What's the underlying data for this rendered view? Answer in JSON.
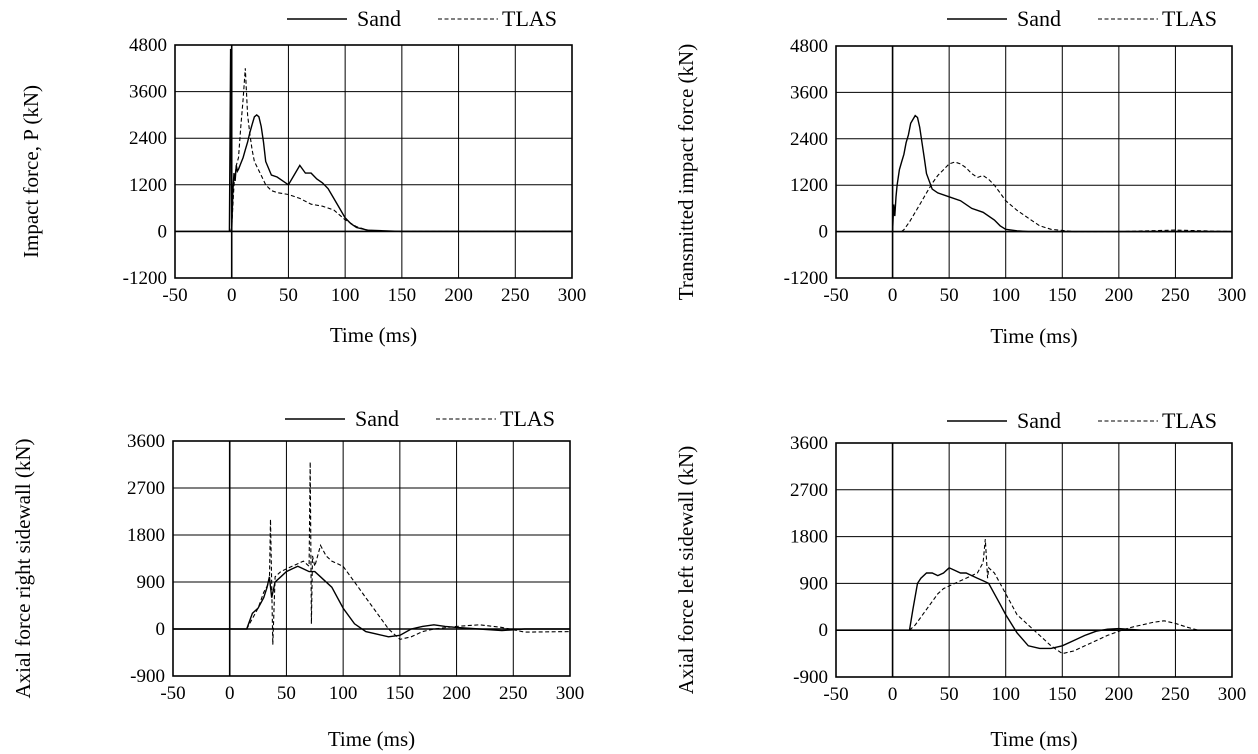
{
  "chart_data": [
    {
      "type": "line",
      "xlabel": "Time (ms)",
      "ylabel": "Impact force, P  (kN)",
      "xlim": [
        -50,
        300
      ],
      "ylim": [
        -1200,
        4800
      ],
      "xticks": [
        "-50",
        "0",
        "50",
        "100",
        "150",
        "200",
        "250",
        "300"
      ],
      "yticks": [
        "-1200",
        "0",
        "1200",
        "2400",
        "3600",
        "4800"
      ],
      "grid": true,
      "legend": "top-right",
      "series": [
        {
          "name": "Sand",
          "x": [
            -2,
            -1,
            0,
            1,
            2,
            3,
            4,
            5,
            6,
            8,
            10,
            12,
            14,
            16,
            18,
            20,
            22,
            24,
            26,
            28,
            30,
            35,
            40,
            45,
            50,
            55,
            60,
            65,
            70,
            75,
            80,
            85,
            90,
            95,
            100,
            105,
            110,
            120,
            150,
            300
          ],
          "y": [
            0,
            4700,
            0,
            1000,
            1500,
            1300,
            1700,
            1550,
            1600,
            1750,
            1900,
            2100,
            2300,
            2550,
            2750,
            2950,
            3000,
            2950,
            2700,
            2300,
            1800,
            1450,
            1400,
            1300,
            1200,
            1450,
            1700,
            1500,
            1500,
            1350,
            1250,
            1100,
            850,
            600,
            350,
            200,
            100,
            30,
            0,
            0
          ]
        },
        {
          "name": "TLAS",
          "x": [
            -1,
            0,
            2,
            4,
            6,
            8,
            10,
            12,
            14,
            16,
            18,
            20,
            25,
            30,
            35,
            40,
            50,
            60,
            70,
            80,
            90,
            100,
            110,
            120,
            130,
            300
          ],
          "y": [
            0,
            100,
            1200,
            1700,
            1900,
            2700,
            3400,
            4200,
            3000,
            2500,
            2100,
            1800,
            1500,
            1200,
            1050,
            1000,
            950,
            850,
            700,
            650,
            550,
            300,
            120,
            30,
            0,
            0
          ]
        }
      ]
    },
    {
      "type": "line",
      "xlabel": "Time (ms)",
      "ylabel": "Transmitted impact force (kN)",
      "xlim": [
        -50,
        300
      ],
      "ylim": [
        -1200,
        4800
      ],
      "xticks": [
        "-50",
        "0",
        "50",
        "100",
        "150",
        "200",
        "250",
        "300"
      ],
      "yticks": [
        "-1200",
        "0",
        "1200",
        "2400",
        "3600",
        "4800"
      ],
      "grid": true,
      "legend": "top-right",
      "series": [
        {
          "name": "Sand",
          "x": [
            0,
            1,
            2,
            3,
            4,
            6,
            8,
            10,
            12,
            14,
            16,
            18,
            20,
            22,
            24,
            26,
            28,
            30,
            35,
            40,
            50,
            60,
            70,
            80,
            90,
            95,
            100,
            110,
            120,
            150,
            300
          ],
          "y": [
            0,
            700,
            400,
            900,
            1200,
            1600,
            1800,
            2000,
            2300,
            2500,
            2800,
            2900,
            3000,
            2950,
            2700,
            2300,
            1900,
            1500,
            1100,
            1000,
            900,
            800,
            600,
            500,
            300,
            150,
            60,
            20,
            0,
            0,
            0
          ]
        },
        {
          "name": "TLAS",
          "x": [
            8,
            10,
            15,
            20,
            25,
            30,
            35,
            40,
            45,
            50,
            55,
            60,
            65,
            70,
            75,
            80,
            85,
            90,
            95,
            100,
            110,
            120,
            130,
            140,
            150,
            160,
            200,
            250,
            300
          ],
          "y": [
            0,
            50,
            250,
            500,
            750,
            1000,
            1250,
            1450,
            1600,
            1750,
            1800,
            1750,
            1650,
            1500,
            1400,
            1450,
            1350,
            1200,
            1000,
            800,
            550,
            350,
            150,
            60,
            30,
            0,
            0,
            40,
            0
          ]
        }
      ]
    },
    {
      "type": "line",
      "xlabel": "Time (ms)",
      "ylabel": "Axial force right sidewall (kN)",
      "xlim": [
        -50,
        300
      ],
      "ylim": [
        -900,
        3600
      ],
      "xticks": [
        "-50",
        "0",
        "50",
        "100",
        "150",
        "200",
        "250",
        "300"
      ],
      "yticks": [
        "-900",
        "0",
        "900",
        "1800",
        "2700",
        "3600"
      ],
      "grid": true,
      "legend": "top-right",
      "series": [
        {
          "name": "Sand",
          "x": [
            -50,
            15,
            20,
            25,
            30,
            33,
            35,
            37,
            40,
            45,
            50,
            55,
            60,
            65,
            70,
            75,
            80,
            90,
            100,
            110,
            120,
            130,
            140,
            150,
            160,
            170,
            180,
            190,
            200,
            220,
            240,
            260,
            300
          ],
          "y": [
            0,
            0,
            300,
            400,
            600,
            800,
            1000,
            600,
            900,
            1000,
            1100,
            1150,
            1200,
            1150,
            1100,
            1100,
            1000,
            800,
            400,
            100,
            -50,
            -100,
            -150,
            -120,
            0,
            50,
            80,
            50,
            30,
            0,
            -30,
            0,
            0
          ]
        },
        {
          "name": "TLAS",
          "x": [
            15,
            20,
            25,
            30,
            35,
            36,
            38,
            40,
            45,
            50,
            55,
            60,
            65,
            70,
            71,
            72,
            73,
            75,
            80,
            85,
            90,
            100,
            110,
            120,
            130,
            140,
            150,
            160,
            170,
            180,
            200,
            220,
            240,
            260,
            300
          ],
          "y": [
            0,
            200,
            400,
            700,
            900,
            2100,
            -300,
            1000,
            1100,
            1150,
            1200,
            1250,
            1300,
            1200,
            3200,
            100,
            1400,
            1200,
            1600,
            1400,
            1300,
            1200,
            900,
            600,
            300,
            0,
            -200,
            -150,
            -50,
            0,
            50,
            80,
            30,
            -60,
            -50
          ]
        }
      ]
    },
    {
      "type": "line",
      "xlabel": "Time (ms)",
      "ylabel": "Axial force left sidewall (kN)",
      "xlim": [
        -50,
        300
      ],
      "ylim": [
        -900,
        3600
      ],
      "xticks": [
        "-50",
        "0",
        "50",
        "100",
        "150",
        "200",
        "250",
        "300"
      ],
      "yticks": [
        "-900",
        "0",
        "900",
        "1800",
        "2700",
        "3600"
      ],
      "grid": true,
      "legend": "top-right",
      "series": [
        {
          "name": "Sand",
          "x": [
            -50,
            15,
            18,
            22,
            25,
            30,
            35,
            40,
            45,
            50,
            55,
            60,
            65,
            70,
            75,
            80,
            85,
            90,
            95,
            100,
            110,
            120,
            130,
            140,
            150,
            160,
            170,
            180,
            190,
            200,
            220,
            240,
            260,
            300
          ],
          "y": [
            0,
            0,
            400,
            900,
            1000,
            1100,
            1100,
            1050,
            1100,
            1200,
            1150,
            1100,
            1100,
            1050,
            1000,
            950,
            900,
            700,
            500,
            300,
            -50,
            -300,
            -350,
            -350,
            -300,
            -200,
            -100,
            -20,
            20,
            30,
            0,
            0,
            0,
            0
          ]
        },
        {
          "name": "TLAS",
          "x": [
            15,
            20,
            25,
            30,
            35,
            40,
            45,
            50,
            55,
            60,
            65,
            70,
            75,
            80,
            82,
            84,
            85,
            90,
            95,
            100,
            105,
            110,
            120,
            130,
            140,
            150,
            160,
            170,
            180,
            190,
            200,
            210,
            220,
            230,
            240,
            250,
            260,
            270,
            300
          ],
          "y": [
            0,
            100,
            250,
            400,
            550,
            700,
            800,
            850,
            900,
            950,
            1000,
            1050,
            1100,
            1300,
            1750,
            1000,
            1200,
            1100,
            900,
            700,
            500,
            300,
            100,
            -100,
            -300,
            -450,
            -400,
            -300,
            -200,
            -100,
            -20,
            50,
            100,
            150,
            180,
            130,
            60,
            0,
            0
          ]
        }
      ]
    }
  ]
}
